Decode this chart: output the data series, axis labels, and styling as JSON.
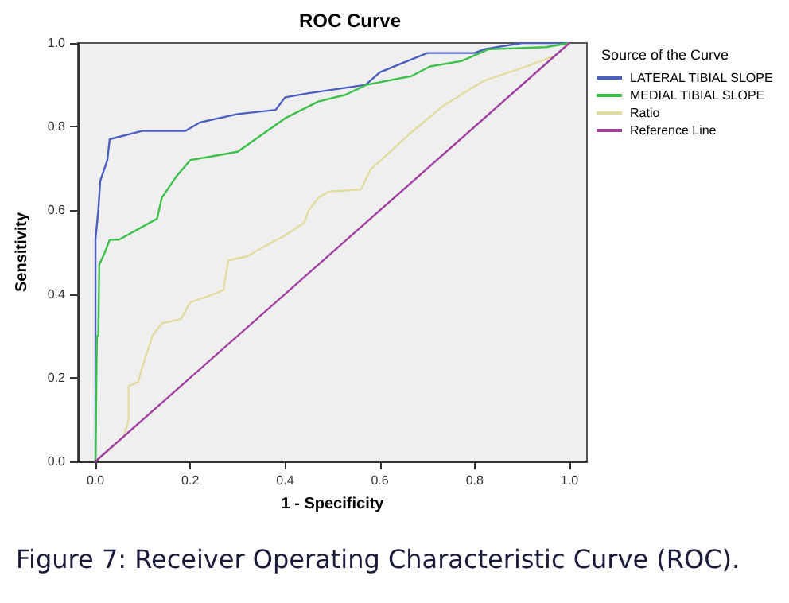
{
  "chart_data": {
    "type": "line",
    "title": "ROC Curve",
    "xlabel": "1 - Specificity",
    "ylabel": "Sensitivity",
    "legend_title": "Source of the Curve",
    "legend": "right",
    "grid": false,
    "marker": "none",
    "line_style": "solid",
    "xlim": [
      -0.037,
      1.037
    ],
    "ylim": [
      0,
      1
    ],
    "xticks": [
      {
        "value": 0,
        "label": "0.0"
      },
      {
        "value": 0.2,
        "label": "0.2"
      },
      {
        "value": 0.4,
        "label": "0.4"
      },
      {
        "value": 0.6,
        "label": "0.6"
      },
      {
        "value": 0.8,
        "label": "0.8"
      },
      {
        "value": 1,
        "label": "1.0"
      }
    ],
    "yticks": [
      {
        "value": 0,
        "label": "0.0"
      },
      {
        "value": 0.2,
        "label": "0.2"
      },
      {
        "value": 0.4,
        "label": "0.4"
      },
      {
        "value": 0.6,
        "label": "0.6"
      },
      {
        "value": 0.8,
        "label": "0.8"
      },
      {
        "value": 1,
        "label": "1.0"
      }
    ],
    "annotations": [
      "Figure 7: Receiver Operating Characteristic Curve (ROC)."
    ],
    "series": [
      {
        "name": "LATERAL TIBIAL SLOPE",
        "color": "#4a5fc0",
        "x": [
          0,
          0,
          0.006,
          0.01,
          0.025,
          0.03,
          0.1,
          0.19,
          0.22,
          0.3,
          0.38,
          0.4,
          0.45,
          0.57,
          0.6,
          0.7,
          0.8,
          0.82,
          0.9,
          1
        ],
        "values": [
          0,
          0.53,
          0.6,
          0.67,
          0.72,
          0.77,
          0.79,
          0.79,
          0.81,
          0.83,
          0.84,
          0.87,
          0.88,
          0.9,
          0.93,
          0.976,
          0.976,
          0.985,
          1,
          1
        ]
      },
      {
        "name": "MEDIAL TIBIAL SLOPE",
        "color": "#3cc04a",
        "x": [
          0,
          0.003,
          0.006,
          0.008,
          0.02,
          0.03,
          0.05,
          0.13,
          0.14,
          0.17,
          0.2,
          0.3,
          0.4,
          0.47,
          0.527,
          0.572,
          0.667,
          0.706,
          0.773,
          0.829,
          0.95,
          1
        ],
        "values": [
          0,
          0.3,
          0.3,
          0.47,
          0.5,
          0.53,
          0.53,
          0.58,
          0.63,
          0.68,
          0.72,
          0.74,
          0.82,
          0.86,
          0.876,
          0.9,
          0.921,
          0.944,
          0.957,
          0.985,
          0.99,
          1
        ]
      },
      {
        "name": "Ratio",
        "color": "#e0dca0",
        "x": [
          0,
          0.06,
          0.07,
          0.07,
          0.09,
          0.1,
          0.12,
          0.14,
          0.18,
          0.2,
          0.25,
          0.27,
          0.28,
          0.32,
          0.35,
          0.4,
          0.44,
          0.45,
          0.47,
          0.493,
          0.56,
          0.58,
          0.67,
          0.734,
          0.82,
          0.91,
          0.97,
          1
        ],
        "values": [
          0,
          0.06,
          0.1,
          0.18,
          0.19,
          0.23,
          0.3,
          0.33,
          0.34,
          0.38,
          0.4,
          0.41,
          0.48,
          0.49,
          0.51,
          0.54,
          0.57,
          0.6,
          0.63,
          0.645,
          0.65,
          0.697,
          0.79,
          0.85,
          0.91,
          0.944,
          0.97,
          1
        ]
      },
      {
        "name": "Reference Line",
        "color": "#a040a0",
        "x": [
          0,
          1
        ],
        "values": [
          0,
          1
        ]
      }
    ]
  }
}
